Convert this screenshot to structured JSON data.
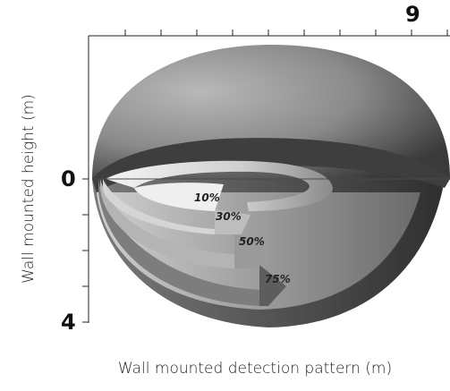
{
  "diagram": {
    "x_axis_label": "Wall mounted detection pattern (m)",
    "y_axis_label": "Wall mounted height (m)",
    "x_max_tick": "9",
    "y_zero_tick": "0",
    "y_max_tick": "4",
    "zones": [
      {
        "label": "10%",
        "shade": "#f2f2f2"
      },
      {
        "label": "30%",
        "shade": "#dcdcdc"
      },
      {
        "label": "50%",
        "shade": "#bcbcbc"
      },
      {
        "label": "75%",
        "shade": "#8e8e8e"
      }
    ],
    "colors": {
      "dome_top": "#5a5a5a",
      "dome_light": "#9a9a9a",
      "rim": "#3f3f3f"
    }
  }
}
